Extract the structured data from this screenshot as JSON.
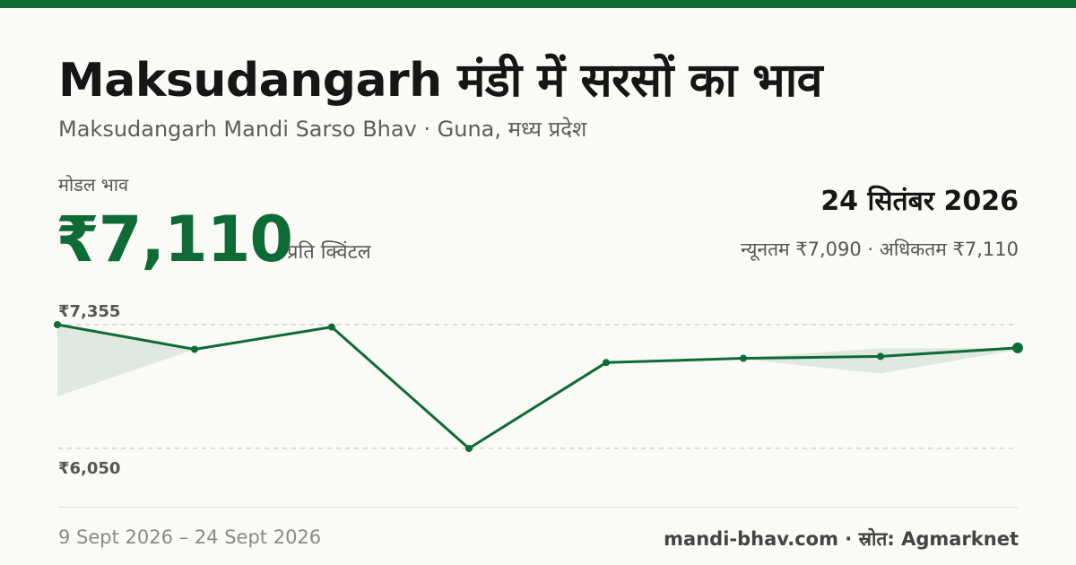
{
  "header": {
    "title": "Maksudangarh मंडी में सरसों का भाव",
    "subtitle": "Maksudangarh Mandi Sarso Bhav · Guna, मध्य प्रदेश"
  },
  "summary": {
    "modal_label": "मोडल भाव",
    "modal_price": "₹7,110",
    "unit": "प्रति क्विंटल",
    "date": "24 सितंबर 2026",
    "min_max": "न्यूनतम ₹7,090 · अधिकतम ₹7,110"
  },
  "footer": {
    "date_range": "9 Sept 2026 – 24 Sept 2026",
    "source": "mandi-bhav.com · स्रोत: Agmarknet"
  },
  "colors": {
    "accent": "#0f6b35",
    "band": "#dfe9e1"
  },
  "chart_data": {
    "type": "line",
    "ylim": [
      6050,
      7355
    ],
    "y_tick_labels": [
      "₹7,355",
      "₹6,050"
    ],
    "series": [
      {
        "values": [
          7355,
          7095,
          7330,
          6050,
          6955,
          7000,
          7020,
          7110
        ]
      }
    ],
    "band": {
      "upper": [
        7355,
        7095,
        7330,
        6050,
        6955,
        7005,
        7105,
        7110
      ],
      "lower": [
        6600,
        7095,
        7330,
        6050,
        6955,
        6990,
        6840,
        7090
      ]
    },
    "grid": true
  }
}
